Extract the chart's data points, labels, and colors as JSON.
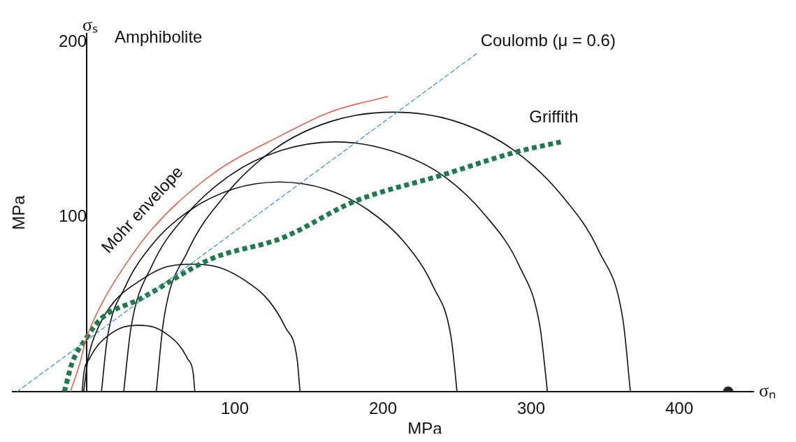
{
  "chart_data": {
    "type": "line",
    "title": "Amphibolite",
    "xlabel": "MPa",
    "ylabel": "MPa",
    "annotations": [
      "σₛ",
      "σₙ"
    ],
    "xlim": [
      -50,
      450
    ],
    "ylim": [
      0,
      205
    ],
    "xticks": [
      100,
      200,
      300,
      400
    ],
    "yticks": [
      100,
      200
    ],
    "grid": false,
    "legend": false,
    "marker": "none",
    "series": [
      {
        "name": "Mohr envelope",
        "color": "#e8604c",
        "line_style": "solid",
        "x": [
          -11,
          -5,
          0,
          10,
          21,
          44,
          84,
          132,
          164,
          203
        ],
        "values": [
          0,
          15,
          31,
          50,
          66,
          93,
          124,
          147,
          160,
          169
        ]
      },
      {
        "name": "Coulomb (μ = 0.6)",
        "color": "#3a8fc0",
        "line_style": "dashed",
        "x": [
          -47,
          264
        ],
        "values": [
          0,
          194
        ]
      },
      {
        "name": "Griffith",
        "color": "#1f7a50",
        "line_style": "dotted",
        "x": [
          -15,
          -10,
          0,
          10,
          36,
          84,
          132,
          181,
          240,
          289,
          320
        ],
        "values": [
          0,
          16,
          31,
          42,
          53,
          76,
          88,
          109,
          124,
          137,
          143
        ]
      },
      {
        "color": "#111111",
        "line_style": "solid",
        "x": [
          -3,
          -2,
          2,
          8,
          16,
          25,
          35,
          45,
          54,
          62,
          68,
          72,
          73
        ],
        "values": [
          0,
          10,
          19,
          27,
          33,
          37,
          38,
          37,
          33,
          27,
          19,
          10,
          0
        ]
      },
      {
        "color": "#111111",
        "line_style": "solid",
        "x": [
          -2,
          1,
          8,
          19,
          35,
          52,
          71,
          90,
          108,
          123,
          134,
          142,
          144
        ],
        "values": [
          0,
          19,
          37,
          52,
          63,
          71,
          73,
          71,
          63,
          52,
          37,
          19,
          0
        ]
      },
      {
        "color": "#111111",
        "line_style": "solid",
        "x": [
          10,
          14,
          26,
          45,
          70,
          99,
          130,
          161,
          190,
          215,
          234,
          246,
          250
        ],
        "values": [
          0,
          31,
          60,
          85,
          104,
          116,
          120,
          116,
          104,
          85,
          60,
          31,
          0
        ]
      },
      {
        "color": "#111111",
        "line_style": "solid",
        "x": [
          25,
          30,
          44,
          67,
          97,
          131,
          168,
          205,
          240,
          269,
          292,
          306,
          311
        ],
        "values": [
          0,
          37,
          72,
          101,
          124,
          138,
          143,
          138,
          124,
          101,
          72,
          37,
          0
        ]
      },
      {
        "color": "#111111",
        "line_style": "solid",
        "x": [
          47,
          52,
          68,
          94,
          127,
          166,
          207,
          248,
          287,
          320,
          346,
          362,
          367
        ],
        "values": [
          0,
          41,
          80,
          113,
          139,
          155,
          160,
          155,
          139,
          113,
          80,
          41,
          0
        ]
      },
      {
        "type": "scatter",
        "marker": "circle",
        "color": "#222222",
        "x": [
          433
        ],
        "values": [
          0
        ]
      }
    ]
  }
}
